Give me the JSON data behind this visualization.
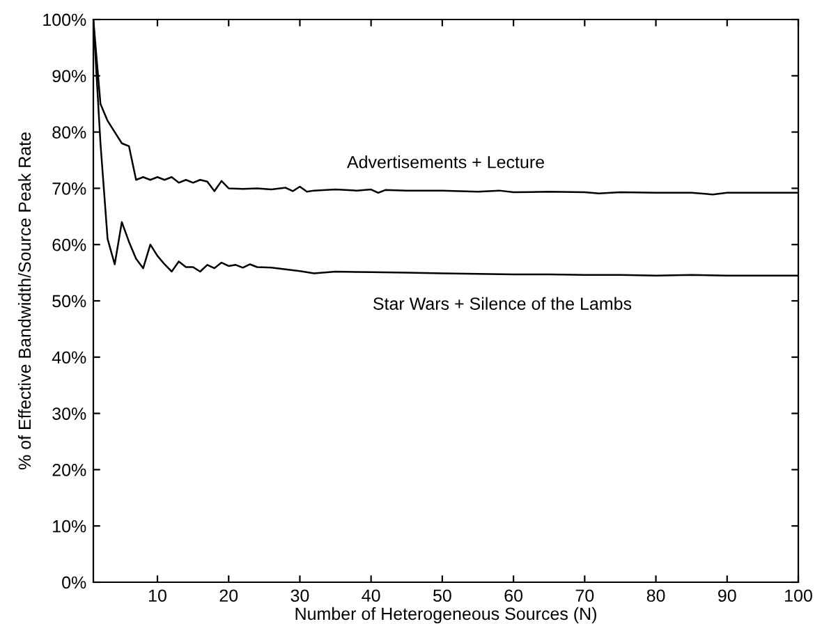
{
  "chart_data": {
    "type": "line",
    "xlabel": "Number of Heterogeneous Sources (N)",
    "ylabel": "% of Effective Bandwidth/Source Peak Rate",
    "xlim": [
      1,
      100
    ],
    "xticks": [
      10,
      20,
      30,
      40,
      50,
      60,
      70,
      80,
      90,
      100
    ],
    "ylim": [
      0,
      100
    ],
    "yticks": [
      {
        "value": 0,
        "label": "0%"
      },
      {
        "value": 10,
        "label": "10%"
      },
      {
        "value": 20,
        "label": "20%"
      },
      {
        "value": 30,
        "label": "30%"
      },
      {
        "value": 40,
        "label": "40%"
      },
      {
        "value": 50,
        "label": "50%"
      },
      {
        "value": 60,
        "label": "60%"
      },
      {
        "value": 70,
        "label": "70%"
      },
      {
        "value": 80,
        "label": "80%"
      },
      {
        "value": 90,
        "label": "90%"
      },
      {
        "value": 100,
        "label": "100%"
      }
    ],
    "grid": false,
    "legend": false,
    "marker": "none",
    "line_style": "solid",
    "series": [
      {
        "name": "Advertisements + Lecture",
        "color": "#000000",
        "x": [
          1,
          2,
          3,
          4,
          5,
          6,
          7,
          8,
          9,
          10,
          11,
          12,
          13,
          14,
          15,
          16,
          17,
          18,
          19,
          20,
          22,
          24,
          26,
          28,
          29,
          30,
          31,
          32,
          35,
          38,
          40,
          41,
          42,
          45,
          50,
          55,
          58,
          60,
          65,
          70,
          72,
          75,
          80,
          85,
          88,
          90,
          95,
          100
        ],
        "values": [
          100,
          85,
          82,
          80,
          78,
          77.5,
          71.5,
          72,
          71.5,
          72,
          71.5,
          72,
          71,
          71.5,
          71,
          71.5,
          71.2,
          69.5,
          71.3,
          70,
          69.9,
          70,
          69.8,
          70.1,
          69.5,
          70.3,
          69.4,
          69.6,
          69.8,
          69.6,
          69.8,
          69.2,
          69.7,
          69.6,
          69.6,
          69.4,
          69.6,
          69.3,
          69.4,
          69.3,
          69.1,
          69.3,
          69.2,
          69.2,
          68.9,
          69.2,
          69.2,
          69.2
        ]
      },
      {
        "name": "Star Wars + Silence of the Lambs",
        "color": "#000000",
        "x": [
          1,
          2,
          3,
          4,
          5,
          6,
          7,
          8,
          9,
          10,
          11,
          12,
          13,
          14,
          15,
          16,
          17,
          18,
          19,
          20,
          21,
          22,
          23,
          24,
          26,
          28,
          30,
          32,
          35,
          40,
          45,
          50,
          55,
          60,
          65,
          70,
          75,
          80,
          85,
          90,
          95,
          100
        ],
        "values": [
          100,
          78,
          61,
          56.5,
          64,
          60.5,
          57.5,
          55.8,
          60,
          58,
          56.5,
          55.2,
          57,
          56,
          56,
          55.2,
          56.4,
          55.8,
          56.8,
          56.2,
          56.4,
          55.9,
          56.5,
          56,
          55.9,
          55.6,
          55.3,
          54.9,
          55.2,
          55.1,
          55,
          54.9,
          54.8,
          54.7,
          54.7,
          54.6,
          54.6,
          54.5,
          54.6,
          54.5,
          54.5,
          54.5
        ]
      }
    ]
  }
}
